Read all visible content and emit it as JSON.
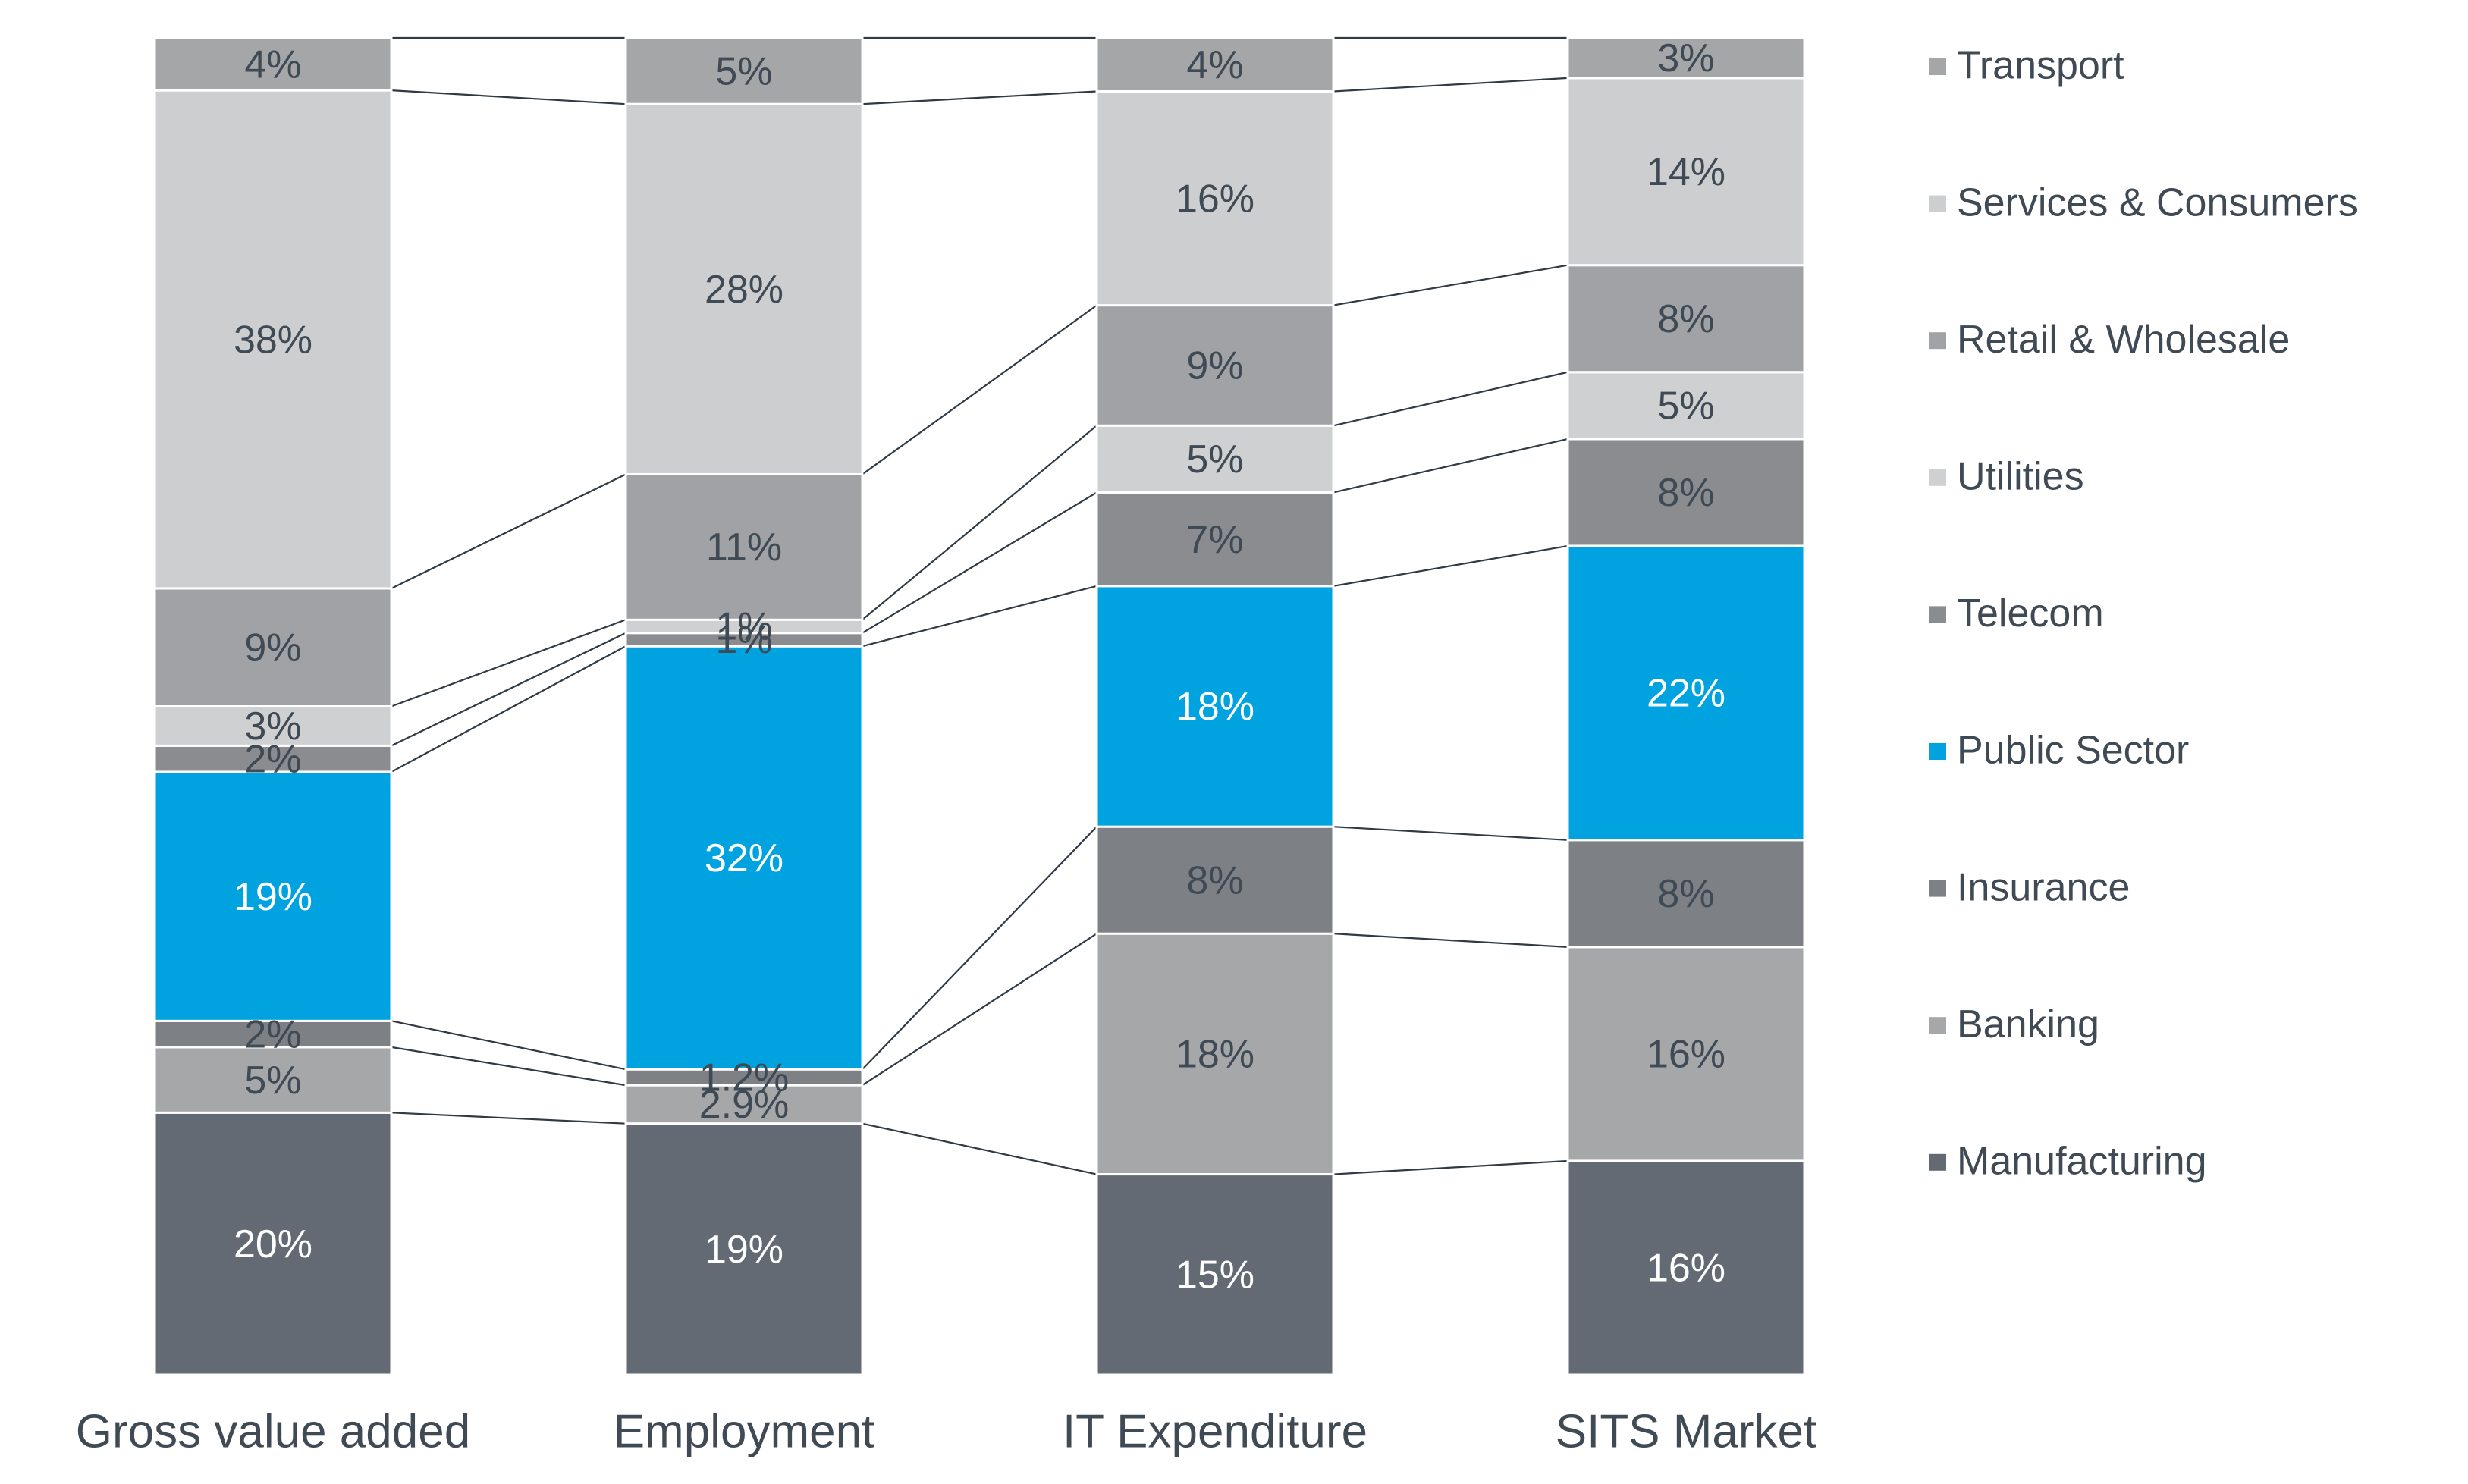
{
  "chart_data": {
    "type": "bar",
    "stacked": "percent",
    "categories": [
      "Gross value added",
      "Employment",
      "IT Expenditure",
      "SITS Market"
    ],
    "series": [
      {
        "name": "Manufacturing",
        "color": "#636a73",
        "label_color": "#ffffff",
        "values": [
          20,
          19,
          15,
          16
        ],
        "value_labels": [
          "20%",
          "19%",
          "15%",
          "16%"
        ]
      },
      {
        "name": "Banking",
        "color": "#a6a7a9",
        "label_color": "#3f4a55",
        "values": [
          5,
          2.9,
          18,
          16
        ],
        "value_labels": [
          "5%",
          "2.9%",
          "18%",
          "16%"
        ]
      },
      {
        "name": "Insurance",
        "color": "#7d8085",
        "label_color": "#3f4a55",
        "values": [
          2,
          1.2,
          8,
          8
        ],
        "value_labels": [
          "2%",
          "1.2%",
          "8%",
          "8%"
        ]
      },
      {
        "name": "Public Sector",
        "color": "#00a3e0",
        "label_color": "#ffffff",
        "values": [
          19,
          32,
          18,
          22
        ],
        "value_labels": [
          "19%",
          "32%",
          "18%",
          "22%"
        ]
      },
      {
        "name": "Telecom",
        "color": "#8a8c90",
        "label_color": "#3f4a55",
        "values": [
          2,
          1,
          7,
          8
        ],
        "value_labels": [
          "2%",
          "1%",
          "7%",
          "8%"
        ]
      },
      {
        "name": "Utilities",
        "color": "#cfd0d2",
        "label_color": "#3f4a55",
        "values": [
          3,
          1,
          5,
          5
        ],
        "value_labels": [
          "3%",
          "1%",
          "5%",
          "5%"
        ]
      },
      {
        "name": "Retail & Wholesale",
        "color": "#a0a2a5",
        "label_color": "#3f4a55",
        "values": [
          9,
          11,
          9,
          8
        ],
        "value_labels": [
          "9%",
          "11%",
          "9%",
          "8%"
        ]
      },
      {
        "name": "Services & Consumers",
        "color": "#cdced0",
        "label_color": "#3f4a55",
        "values": [
          38,
          28,
          16,
          14
        ],
        "value_labels": [
          "38%",
          "28%",
          "16%",
          "14%"
        ]
      },
      {
        "name": "Transport",
        "color": "#a5a6a8",
        "label_color": "#3f4a55",
        "values": [
          4,
          5,
          4,
          3
        ],
        "value_labels": [
          "4%",
          "5%",
          "4%",
          "3%"
        ]
      }
    ]
  }
}
